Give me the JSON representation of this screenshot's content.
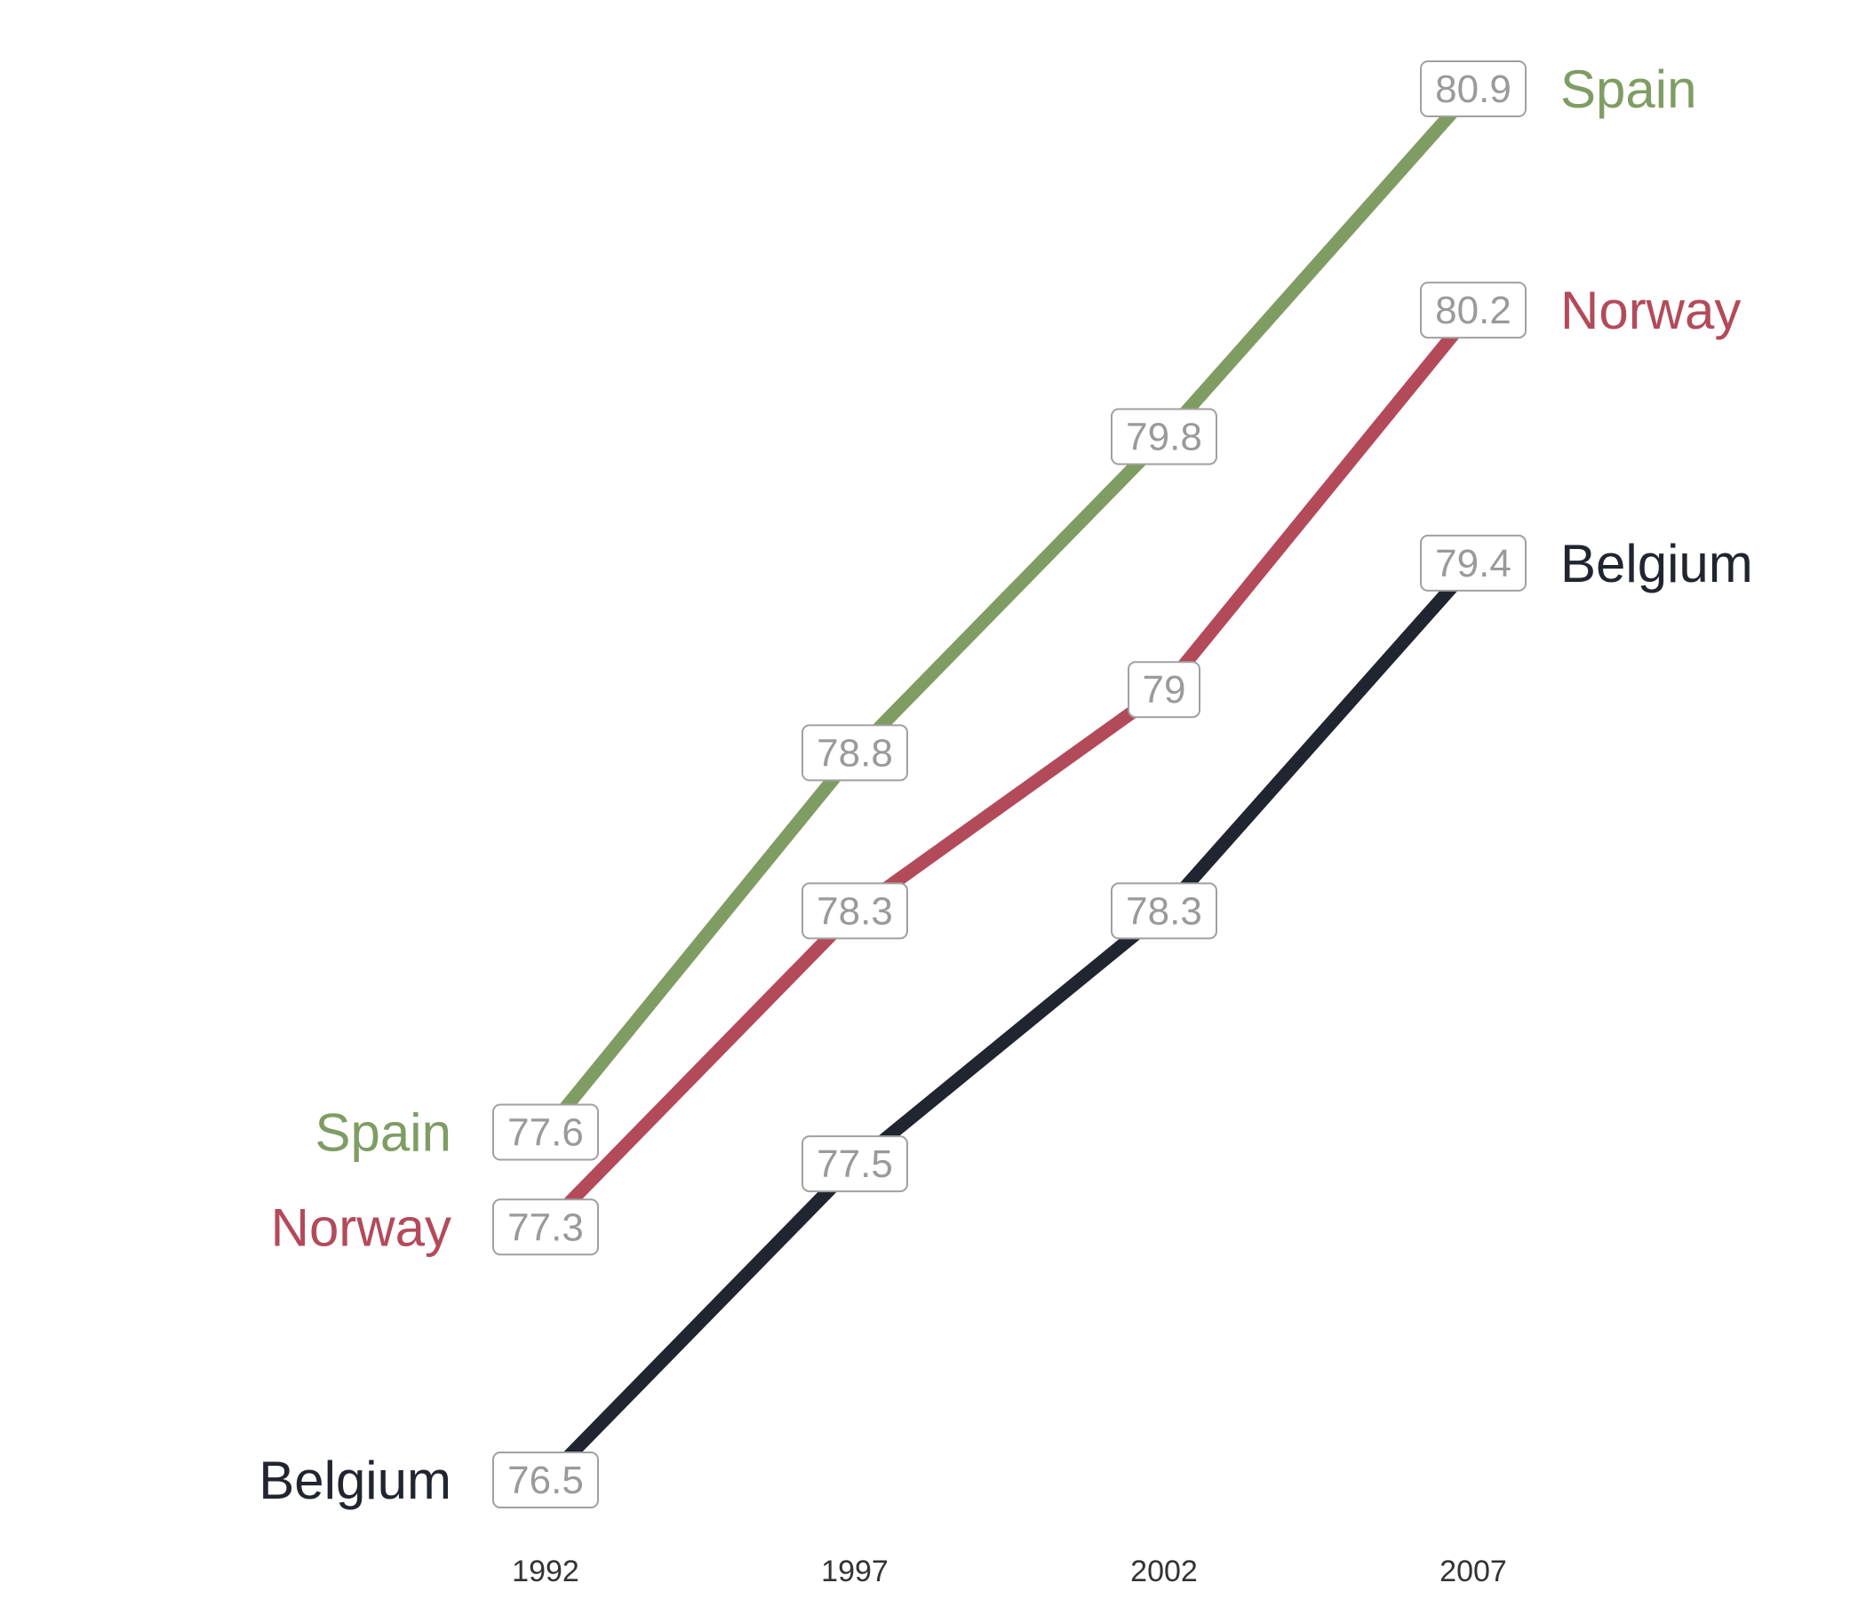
{
  "chart_data": {
    "type": "line",
    "categories": [
      "1992",
      "1997",
      "2002",
      "2007"
    ],
    "series": [
      {
        "name": "Spain",
        "color": "#7f9d63",
        "values": [
          77.6,
          78.8,
          79.8,
          80.9
        ],
        "labels": [
          "77.6",
          "78.8",
          "79.8",
          "80.9"
        ]
      },
      {
        "name": "Norway",
        "color": "#b34a5a",
        "values": [
          77.3,
          78.3,
          79.0,
          80.2
        ],
        "labels": [
          "77.3",
          "78.3",
          "79",
          "80.2"
        ]
      },
      {
        "name": "Belgium",
        "color": "#212530",
        "values": [
          76.5,
          77.5,
          78.3,
          79.4
        ],
        "labels": [
          "76.5",
          "77.5",
          "78.3",
          "79.4"
        ]
      }
    ],
    "grid": false,
    "legend": "none (series names labelled at both line ends)"
  }
}
